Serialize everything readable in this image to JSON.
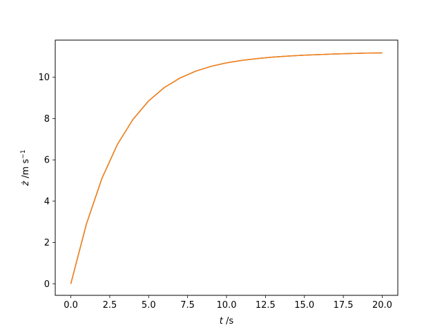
{
  "chart_data": {
    "type": "line",
    "title": "",
    "xlabel": "t /s",
    "xlabel_parts": {
      "var": "t",
      "unit": " /s"
    },
    "ylabel": "ż /m s⁻¹",
    "ylabel_parts": {
      "var": "ż",
      "unit": " /m s",
      "exp": "−1"
    },
    "xlim": [
      -1,
      21
    ],
    "ylim": [
      -0.56,
      11.8
    ],
    "xticks": [
      0,
      2.5,
      5,
      7.5,
      10,
      12.5,
      15,
      17.5,
      20
    ],
    "xtick_labels": [
      "0.0",
      "2.5",
      "5.0",
      "7.5",
      "10.0",
      "12.5",
      "15.0",
      "17.5",
      "20.0"
    ],
    "yticks": [
      0,
      2,
      4,
      6,
      8,
      10
    ],
    "ytick_labels": [
      "0",
      "2",
      "4",
      "6",
      "8",
      "10"
    ],
    "grid": false,
    "legend": "none",
    "series": [
      {
        "color": "#1f77b4",
        "x": [
          0,
          1,
          2,
          3,
          4,
          5,
          6,
          7,
          8,
          9,
          10,
          11,
          12,
          13,
          14,
          15,
          16,
          17,
          18,
          19,
          20
        ],
        "y": [
          0,
          2.89,
          5.11,
          6.76,
          7.97,
          8.86,
          9.5,
          9.96,
          10.29,
          10.53,
          10.7,
          10.82,
          10.91,
          10.98,
          11.03,
          11.07,
          11.1,
          11.13,
          11.15,
          11.17,
          11.18
        ]
      },
      {
        "color": "#ff7f0e",
        "x": [
          0,
          1,
          2,
          3,
          4,
          5,
          6,
          7,
          8,
          9,
          10,
          11,
          12,
          13,
          14,
          15,
          16,
          17,
          18,
          19,
          20
        ],
        "y": [
          0,
          2.89,
          5.11,
          6.76,
          7.97,
          8.86,
          9.5,
          9.96,
          10.29,
          10.53,
          10.7,
          10.82,
          10.91,
          10.98,
          11.03,
          11.07,
          11.1,
          11.13,
          11.15,
          11.17,
          11.18
        ]
      }
    ]
  }
}
